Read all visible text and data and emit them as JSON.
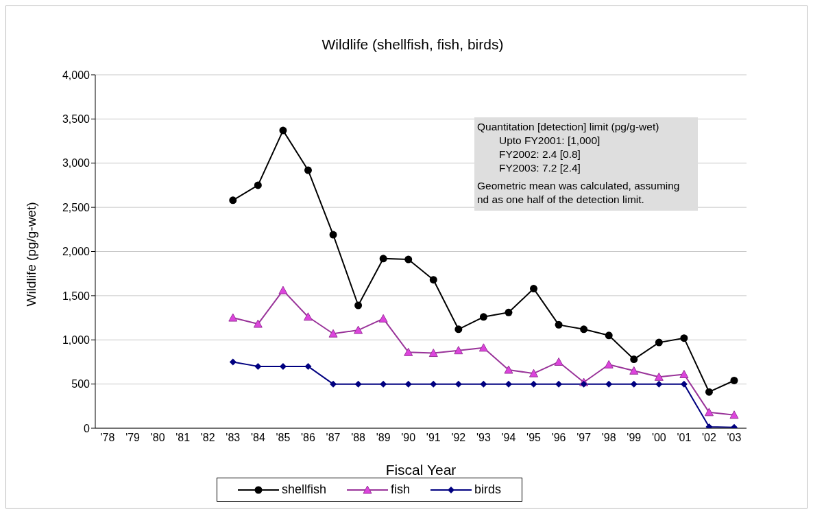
{
  "chart_data": {
    "type": "line",
    "title": "Wildlife (shellfish, fish, birds)",
    "xlabel": "Fiscal Year",
    "ylabel": "Wildlife (pg/g-wet)",
    "categories": [
      "'78",
      "'79",
      "'80",
      "'81",
      "'82",
      "'83",
      "'84",
      "'85",
      "'86",
      "'87",
      "'88",
      "'89",
      "'90",
      "'91",
      "'92",
      "'93",
      "'94",
      "'95",
      "'96",
      "'97",
      "'98",
      "'99",
      "'00",
      "'01",
      "'02",
      "'03"
    ],
    "series": [
      {
        "name": "shellfish",
        "color": "#000000",
        "marker": "circle",
        "values": [
          null,
          null,
          null,
          null,
          null,
          2580,
          2750,
          3370,
          2920,
          2190,
          1390,
          1920,
          1910,
          1680,
          1120,
          1260,
          1310,
          1580,
          1170,
          1120,
          1050,
          780,
          970,
          1020,
          410,
          540
        ]
      },
      {
        "name": "fish",
        "color": "#993399",
        "marker": "triangle",
        "values": [
          null,
          null,
          null,
          null,
          null,
          1250,
          1180,
          1560,
          1260,
          1070,
          1110,
          1240,
          860,
          850,
          880,
          910,
          660,
          620,
          750,
          520,
          720,
          650,
          580,
          610,
          180,
          150
        ]
      },
      {
        "name": "birds",
        "color": "#000080",
        "marker": "diamond",
        "values": [
          null,
          null,
          null,
          null,
          null,
          750,
          700,
          700,
          700,
          500,
          500,
          500,
          500,
          500,
          500,
          500,
          500,
          500,
          500,
          500,
          500,
          500,
          500,
          500,
          15,
          10
        ]
      }
    ],
    "ylim": [
      0,
      4000
    ],
    "yticks": [
      {
        "value": 0,
        "label": "0"
      },
      {
        "value": 500,
        "label": "500"
      },
      {
        "value": 1000,
        "label": "1,000"
      },
      {
        "value": 1500,
        "label": "1,500"
      },
      {
        "value": 2000,
        "label": "2,000"
      },
      {
        "value": 2500,
        "label": "2,500"
      },
      {
        "value": 3000,
        "label": "3,000"
      },
      {
        "value": 3500,
        "label": "3,500"
      },
      {
        "value": 4000,
        "label": "4,000"
      }
    ],
    "grid": "y",
    "legend": "bottom",
    "line_style": "solid",
    "annotations": [
      "Quantitation [detection] limit (pg/g-wet)",
      "Upto FY2001: [1,000]",
      "FY2002: 2.4 [0.8]",
      "FY2003: 7.2 [2.4]",
      "Geometric mean was calculated, assuming nd as one half of the detection limit."
    ]
  }
}
